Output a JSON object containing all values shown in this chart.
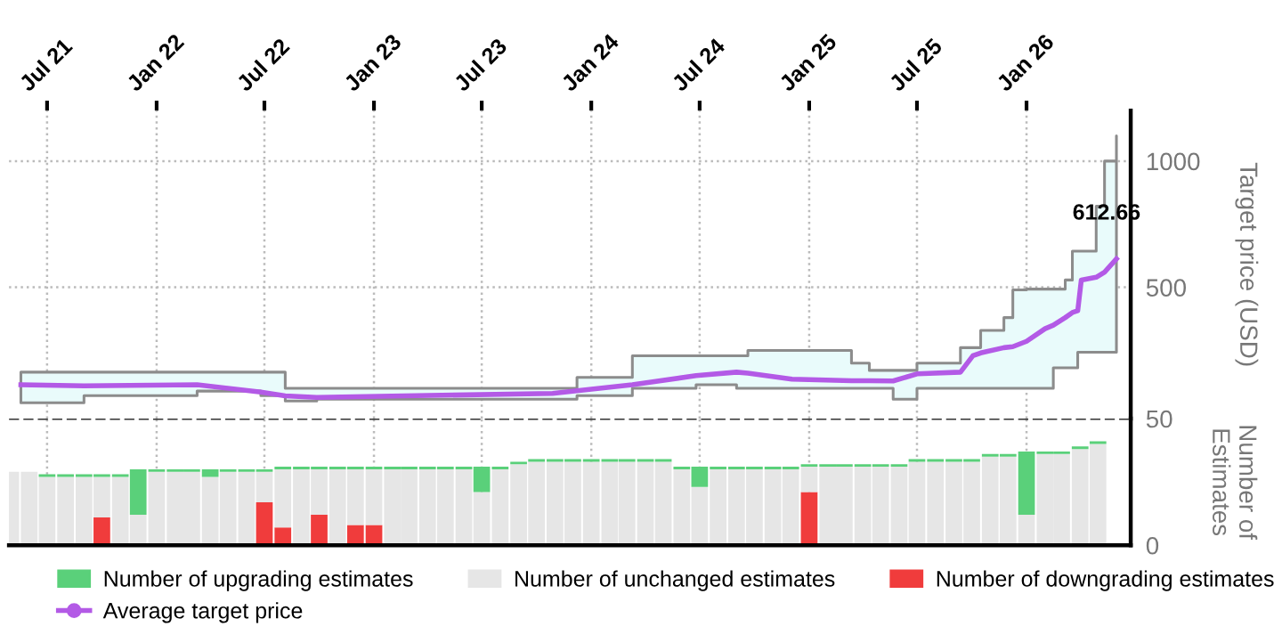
{
  "chart_data": [
    {
      "type": "line",
      "ylabel": "Target price (USD)",
      "xlim": [
        "2021-04-28",
        "2026-06-25"
      ],
      "xticks": [
        {
          "value": "2021-07-01",
          "label": "Jul 21"
        },
        {
          "value": "2022-01-01",
          "label": "Jan 22"
        },
        {
          "value": "2022-07-01",
          "label": "Jul 22"
        },
        {
          "value": "2023-01-01",
          "label": "Jan 23"
        },
        {
          "value": "2023-07-01",
          "label": "Jul 23"
        },
        {
          "value": "2024-01-01",
          "label": "Jan 24"
        },
        {
          "value": "2024-07-01",
          "label": "Jul 24"
        },
        {
          "value": "2025-01-01",
          "label": "Jan 25"
        },
        {
          "value": "2025-07-01",
          "label": "Jul 25"
        },
        {
          "value": "2026-01-01",
          "label": "Jan 26"
        }
      ],
      "ylim": [
        -20,
        1200
      ],
      "yticks": [
        500,
        1000
      ],
      "grid": true,
      "legend": "bottom",
      "line_style": "solid",
      "series": [
        {
          "name": "Average target price",
          "color": "#b35ae6",
          "x": [
            "2021-05-18",
            "2021-09-01",
            "2022-03-10",
            "2022-06-25",
            "2022-08-05",
            "2022-09-27",
            "2023-10-28",
            "2023-12-08",
            "2024-03-10",
            "2024-06-25",
            "2024-09-01",
            "2024-09-20",
            "2024-12-03",
            "2025-03-13",
            "2025-04-12",
            "2025-05-22",
            "2025-07-01",
            "2025-09-12",
            "2025-10-03",
            "2025-10-16",
            "2025-11-24",
            "2025-12-09",
            "2026-01-01",
            "2026-02-01",
            "2026-02-15",
            "2026-03-07",
            "2026-03-19",
            "2026-03-28",
            "2026-04-03",
            "2026-04-28",
            "2026-05-12",
            "2026-06-01"
          ],
          "values": [
            114,
            110,
            114,
            85,
            70,
            64,
            80,
            90,
            114,
            150,
            164,
            160,
            136,
            130,
            130,
            129,
            157,
            164,
            229,
            240,
            261,
            265,
            286,
            336,
            350,
            380,
            400,
            407,
            529,
            540,
            560,
            612.66
          ],
          "lower": [
            43,
            71,
            89,
            71,
            50,
            57,
            57,
            71,
            100,
            114,
            100,
            100,
            100,
            100,
            100,
            57,
            100,
            100,
            100,
            100,
            100,
            100,
            100,
            100,
            181,
            181,
            181,
            243,
            243,
            243,
            243,
            243
          ],
          "upper": [
            164,
            164,
            164,
            164,
            100,
            100,
            100,
            143,
            229,
            229,
            229,
            250,
            250,
            200,
            171,
            171,
            200,
            261,
            261,
            329,
            380,
            490,
            493,
            493,
            493,
            529,
            643,
            643,
            643,
            821,
            1000,
            1100
          ]
        }
      ],
      "annotations": [
        {
          "text": "612.66",
          "x": "2026-06-01",
          "y": 612.66
        }
      ]
    },
    {
      "type": "bar",
      "stacked": true,
      "ylabel": "Number of\nEstimates",
      "xlim": [
        "2021-04-28",
        "2026-06-25"
      ],
      "xticks": [
        {
          "value": "2021-07-01",
          "label": null
        },
        {
          "value": "2022-01-01",
          "label": null
        },
        {
          "value": "2022-07-01",
          "label": null
        },
        {
          "value": "2023-01-01",
          "label": null
        },
        {
          "value": "2023-07-01",
          "label": null
        },
        {
          "value": "2024-01-01",
          "label": null
        },
        {
          "value": "2024-07-01",
          "label": null
        },
        {
          "value": "2025-01-01",
          "label": null
        },
        {
          "value": "2025-07-01",
          "label": null
        },
        {
          "value": "2026-01-01",
          "label": null
        }
      ],
      "ylim": [
        0,
        50
      ],
      "yticks": [
        0,
        50
      ],
      "grid": "x",
      "tick_labels": "y",
      "legend": "bottom",
      "ref_lines": [
        {
          "axis": "y",
          "value": 50,
          "color": "#333333",
          "line_style": "dashed"
        }
      ],
      "x": [
        "2021-05",
        "2021-06",
        "2021-07",
        "2021-08",
        "2021-09",
        "2021-10",
        "2021-11",
        "2021-12",
        "2022-01",
        "2022-02",
        "2022-03",
        "2022-04",
        "2022-05",
        "2022-06",
        "2022-07",
        "2022-08",
        "2022-09",
        "2022-10",
        "2022-11",
        "2022-12",
        "2023-01",
        "2023-02",
        "2023-03",
        "2023-04",
        "2023-05",
        "2023-06",
        "2023-07",
        "2023-08",
        "2023-09",
        "2023-10",
        "2023-11",
        "2023-12",
        "2024-01",
        "2024-02",
        "2024-03",
        "2024-04",
        "2024-05",
        "2024-06",
        "2024-07",
        "2024-08",
        "2024-09",
        "2024-10",
        "2024-11",
        "2024-12",
        "2025-01",
        "2025-02",
        "2025-03",
        "2025-04",
        "2025-05",
        "2025-06",
        "2025-07",
        "2025-08",
        "2025-09",
        "2025-10",
        "2025-11",
        "2025-12",
        "2026-01",
        "2026-02",
        "2026-03",
        "2026-04",
        "2026-05"
      ],
      "series": [
        {
          "name": "Number of downgrading estimates",
          "color": "#f03c3c",
          "values": [
            0,
            0,
            0,
            0,
            0,
            11,
            0,
            0,
            0,
            0,
            0,
            0,
            0,
            0,
            17,
            7,
            0,
            12,
            0,
            8,
            8,
            0,
            0,
            0,
            0,
            0,
            0,
            0,
            0,
            0,
            0,
            0,
            0,
            0,
            0,
            0,
            0,
            0,
            0,
            0,
            0,
            0,
            0,
            0,
            21,
            0,
            0,
            0,
            0,
            0,
            0,
            0,
            0,
            0,
            0,
            0,
            0,
            0,
            0,
            0,
            0
          ]
        },
        {
          "name": "Number of unchanged estimates",
          "color": "#e6e6e6",
          "values": [
            29,
            29,
            27,
            27,
            27,
            16,
            27,
            12,
            29,
            29,
            29,
            27,
            29,
            29,
            12,
            23,
            30,
            18,
            30,
            22,
            22,
            30,
            30,
            30,
            30,
            30,
            21,
            30,
            32,
            33,
            33,
            33,
            33,
            33,
            33,
            33,
            33,
            30,
            23,
            30,
            30,
            30,
            30,
            30,
            10,
            31,
            31,
            31,
            31,
            31,
            33,
            33,
            33,
            33,
            35,
            35,
            12,
            36,
            36,
            38,
            40
          ]
        },
        {
          "name": "Number of upgrading estimates",
          "color": "#5ad07a",
          "values": [
            0,
            0,
            1,
            1,
            1,
            1,
            1,
            18,
            1,
            1,
            1,
            3,
            1,
            1,
            1,
            1,
            1,
            1,
            1,
            1,
            1,
            1,
            1,
            1,
            1,
            1,
            10,
            1,
            1,
            1,
            1,
            1,
            1,
            1,
            1,
            1,
            1,
            1,
            8,
            1,
            1,
            1,
            1,
            1,
            1,
            1,
            1,
            1,
            1,
            1,
            1,
            1,
            1,
            1,
            1,
            1,
            25,
            1,
            1,
            1,
            1
          ]
        }
      ]
    }
  ]
}
